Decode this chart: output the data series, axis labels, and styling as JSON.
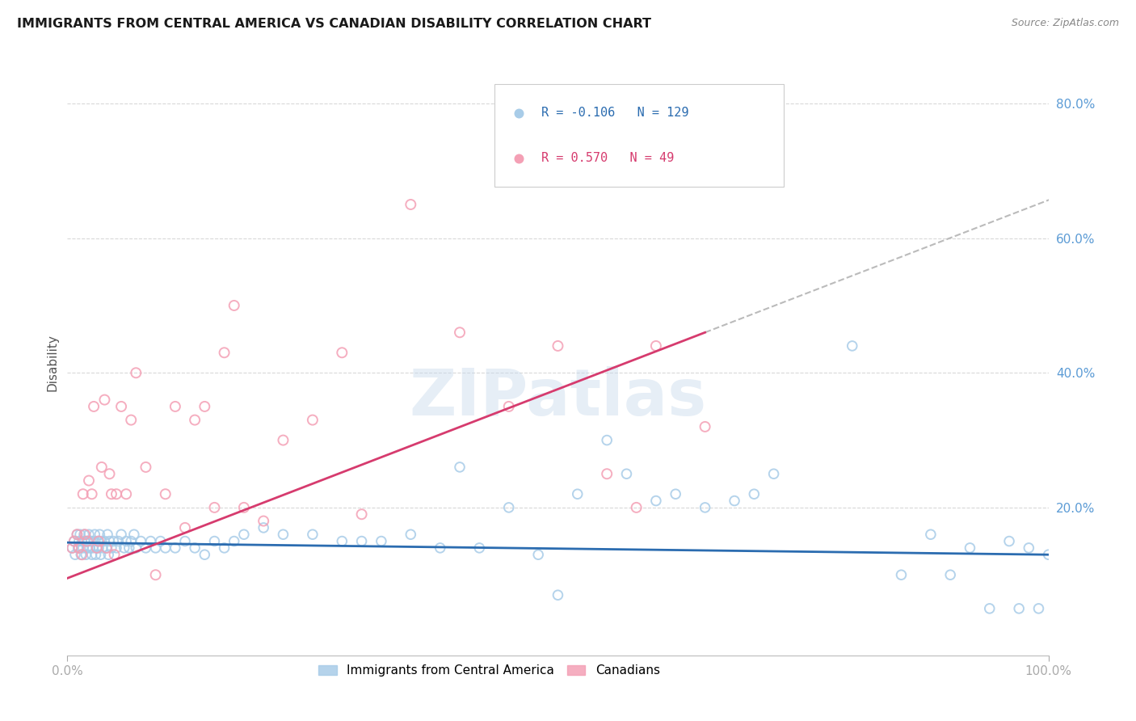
{
  "title": "IMMIGRANTS FROM CENTRAL AMERICA VS CANADIAN DISABILITY CORRELATION CHART",
  "source": "Source: ZipAtlas.com",
  "ylabel": "Disability",
  "blue_R": -0.106,
  "blue_N": 129,
  "pink_R": 0.57,
  "pink_N": 49,
  "legend_label_blue": "Immigrants from Central America",
  "legend_label_pink": "Canadians",
  "blue_color": "#a8cce8",
  "pink_color": "#f4a0b5",
  "blue_line_color": "#2b6cb0",
  "pink_line_color": "#d63b6e",
  "watermark": "ZIPatlas",
  "title_color": "#1a1a1a",
  "axis_color": "#5b9bd5",
  "grid_color": "#d8d8d8",
  "ylim_low": -0.02,
  "ylim_high": 0.85,
  "xlim_low": 0.0,
  "xlim_high": 1.0,
  "blue_x": [
    0.005,
    0.007,
    0.008,
    0.01,
    0.011,
    0.012,
    0.013,
    0.014,
    0.015,
    0.016,
    0.017,
    0.018,
    0.019,
    0.02,
    0.021,
    0.022,
    0.023,
    0.024,
    0.025,
    0.026,
    0.027,
    0.028,
    0.029,
    0.03,
    0.031,
    0.032,
    0.033,
    0.034,
    0.035,
    0.036,
    0.038,
    0.04,
    0.041,
    0.042,
    0.043,
    0.045,
    0.047,
    0.05,
    0.052,
    0.055,
    0.058,
    0.06,
    0.063,
    0.065,
    0.068,
    0.07,
    0.075,
    0.08,
    0.085,
    0.09,
    0.095,
    0.1,
    0.11,
    0.12,
    0.13,
    0.14,
    0.15,
    0.16,
    0.17,
    0.18,
    0.2,
    0.22,
    0.25,
    0.28,
    0.3,
    0.32,
    0.35,
    0.38,
    0.4,
    0.42,
    0.45,
    0.48,
    0.5,
    0.52,
    0.55,
    0.57,
    0.6,
    0.62,
    0.65,
    0.68,
    0.7,
    0.72,
    0.8,
    0.85,
    0.88,
    0.9,
    0.92,
    0.94,
    0.96,
    0.97,
    0.98,
    0.99,
    1.0
  ],
  "blue_y": [
    0.14,
    0.15,
    0.13,
    0.16,
    0.14,
    0.15,
    0.16,
    0.13,
    0.15,
    0.14,
    0.16,
    0.15,
    0.13,
    0.14,
    0.15,
    0.16,
    0.14,
    0.15,
    0.13,
    0.14,
    0.15,
    0.16,
    0.13,
    0.14,
    0.15,
    0.14,
    0.16,
    0.13,
    0.15,
    0.14,
    0.15,
    0.14,
    0.16,
    0.13,
    0.15,
    0.14,
    0.15,
    0.14,
    0.15,
    0.16,
    0.14,
    0.15,
    0.14,
    0.15,
    0.16,
    0.14,
    0.15,
    0.14,
    0.15,
    0.14,
    0.15,
    0.14,
    0.14,
    0.15,
    0.14,
    0.13,
    0.15,
    0.14,
    0.15,
    0.16,
    0.17,
    0.16,
    0.16,
    0.15,
    0.15,
    0.15,
    0.16,
    0.14,
    0.26,
    0.14,
    0.2,
    0.13,
    0.07,
    0.22,
    0.3,
    0.25,
    0.21,
    0.22,
    0.2,
    0.21,
    0.22,
    0.25,
    0.44,
    0.1,
    0.16,
    0.1,
    0.14,
    0.05,
    0.15,
    0.05,
    0.14,
    0.05,
    0.13
  ],
  "pink_x": [
    0.005,
    0.007,
    0.01,
    0.012,
    0.015,
    0.016,
    0.018,
    0.02,
    0.022,
    0.025,
    0.027,
    0.03,
    0.032,
    0.035,
    0.038,
    0.04,
    0.043,
    0.045,
    0.048,
    0.05,
    0.055,
    0.06,
    0.065,
    0.07,
    0.08,
    0.09,
    0.1,
    0.11,
    0.12,
    0.13,
    0.14,
    0.15,
    0.16,
    0.17,
    0.18,
    0.2,
    0.22,
    0.25,
    0.28,
    0.3,
    0.35,
    0.4,
    0.45,
    0.5,
    0.55,
    0.58,
    0.6,
    0.65
  ],
  "pink_y": [
    0.14,
    0.15,
    0.16,
    0.14,
    0.13,
    0.22,
    0.16,
    0.15,
    0.24,
    0.22,
    0.35,
    0.14,
    0.15,
    0.26,
    0.36,
    0.14,
    0.25,
    0.22,
    0.13,
    0.22,
    0.35,
    0.22,
    0.33,
    0.4,
    0.26,
    0.1,
    0.22,
    0.35,
    0.17,
    0.33,
    0.35,
    0.2,
    0.43,
    0.5,
    0.2,
    0.18,
    0.3,
    0.33,
    0.43,
    0.19,
    0.65,
    0.46,
    0.35,
    0.44,
    0.25,
    0.2,
    0.44,
    0.32
  ]
}
